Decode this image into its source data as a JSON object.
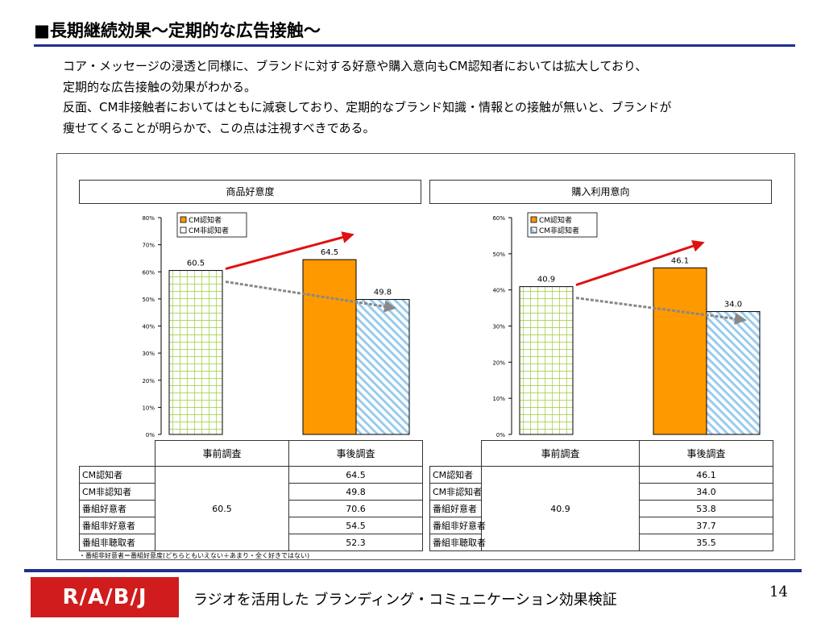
{
  "title": "■長期継続効果～定期的な広告接触～",
  "intro": [
    "コア・メッセージの浸透と同様に、ブランドに対する好意や購入意向もCM認知者においては拡大しており、",
    "定期的な広告接触の効果がわかる。",
    "反面、CM非接触者においてはともに減衰しており、定期的なブランド知識・情報との接触が無いと、ブランドが",
    "痩せてくることが明らかで、この点は注視すべきである。"
  ],
  "colors": {
    "accent_blue": "#1f2f8f",
    "bar_orange": "#ff9900",
    "bar_green_grid": "#99cc33",
    "bar_blue_hatch": "#99ccee",
    "arrow_red": "#e01010",
    "arrow_gray": "#888888",
    "logo_red": "#d01c1c"
  },
  "chart_data": [
    {
      "type": "bar",
      "title": "商品好意度",
      "ylim": [
        0,
        80
      ],
      "yticks": [
        "0%",
        "10%",
        "20%",
        "30%",
        "40%",
        "50%",
        "60%",
        "70%",
        "80%"
      ],
      "ytick_values": [
        0,
        10,
        20,
        30,
        40,
        50,
        60,
        70,
        80
      ],
      "legend": [
        "CM認知者",
        "CM非認知者"
      ],
      "legend_position": "top-left",
      "bars": [
        {
          "value": 60.5,
          "label": "60.5",
          "style": "grid"
        },
        {
          "value": 64.5,
          "label": "64.5",
          "style": "orange"
        },
        {
          "value": 49.8,
          "label": "49.8",
          "style": "hatch"
        }
      ]
    },
    {
      "type": "bar",
      "title": "購入利用意向",
      "ylim": [
        0,
        60
      ],
      "yticks": [
        "0%",
        "10%",
        "20%",
        "30%",
        "40%",
        "50%",
        "60%"
      ],
      "ytick_values": [
        0,
        10,
        20,
        30,
        40,
        50,
        60
      ],
      "legend": [
        "CM認知者",
        "CM非認知者"
      ],
      "legend_position": "top-left",
      "bars": [
        {
          "value": 40.9,
          "label": "40.9",
          "style": "grid"
        },
        {
          "value": 46.1,
          "label": "46.1",
          "style": "orange"
        },
        {
          "value": 34.0,
          "label": "34.0",
          "style": "hatch"
        }
      ]
    }
  ],
  "tables": [
    {
      "col_pre": "事前調査",
      "col_post": "事後調査",
      "pre_value": "60.5",
      "rows": [
        {
          "label": "CM認知者",
          "post": "64.5"
        },
        {
          "label": "CM非認知者",
          "post": "49.8"
        },
        {
          "label": "番組好意者",
          "post": "70.6"
        },
        {
          "label": "番組非好意者",
          "post": "54.5"
        },
        {
          "label": "番組非聴取者",
          "post": "52.3"
        }
      ]
    },
    {
      "col_pre": "事前調査",
      "col_post": "事後調査",
      "pre_value": "40.9",
      "rows": [
        {
          "label": "CM認知者",
          "post": "46.1"
        },
        {
          "label": "CM非認知者",
          "post": "34.0"
        },
        {
          "label": "番組好意者",
          "post": "53.8"
        },
        {
          "label": "番組非好意者",
          "post": "37.7"
        },
        {
          "label": "番組非聴取者",
          "post": "35.5"
        }
      ]
    }
  ],
  "note": "・番組非好意者＝番組好意度(どちらともいえない＋あまり・全く好きではない)",
  "footer": {
    "logo": "R/A/B/J",
    "text": "ラジオを活用した  ブランディング・コミュニケーション効果検証",
    "page": "14"
  }
}
